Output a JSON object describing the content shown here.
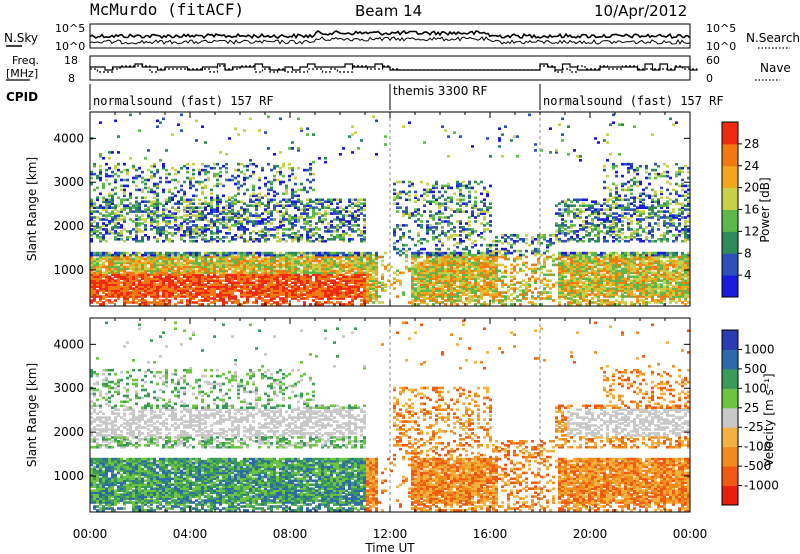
{
  "header": {
    "station": "McMurdo (fitACF)",
    "beam": "Beam 14",
    "date": "10/Apr/2012"
  },
  "top_panels": {
    "nsky_label": "N.Sky",
    "nsearch_label": "N.Search",
    "noise_ticks_left": [
      "10^5",
      "10^0"
    ],
    "noise_ticks_right": [
      "10^5",
      "10^0"
    ],
    "freq_label_line1": "Freq.",
    "freq_label_line2": "[MHz]",
    "freq_ticks": [
      "18",
      "8"
    ],
    "nave_label": "Nave",
    "nave_ticks": [
      "60",
      "0"
    ],
    "cpid_label": "CPID",
    "cpid_segments": [
      {
        "label": "normalsound (fast) 157 RF",
        "start_hour": 0
      },
      {
        "label": "themis 3300 RF",
        "start_hour": 12
      },
      {
        "label": "normalsound (fast) 157 RF",
        "start_hour": 18
      }
    ]
  },
  "chart_data": [
    {
      "type": "heatmap",
      "name": "power",
      "ylabel": "Slant Range [km]",
      "ylim": [
        180,
        4600
      ],
      "yticks": [
        1000,
        2000,
        3000,
        4000
      ],
      "xlim": [
        0,
        24
      ],
      "colorbar": {
        "label": "Power [dB]",
        "ticks": [
          "4",
          "8",
          "12",
          "16",
          "20",
          "24",
          "28"
        ],
        "colors": [
          "#1a1adc",
          "#2c4fb8",
          "#2e8a5a",
          "#5cb84a",
          "#c8d04a",
          "#f2a61c",
          "#f07a10",
          "#ee2a10"
        ]
      }
    },
    {
      "type": "heatmap",
      "name": "velocity",
      "ylabel": "Slant Range [km]",
      "ylim": [
        180,
        4600
      ],
      "yticks": [
        1000,
        2000,
        3000,
        4000
      ],
      "xlim": [
        0,
        24
      ],
      "xlabel": "Time UT",
      "xticks": [
        "00:00",
        "04:00",
        "08:00",
        "12:00",
        "16:00",
        "20:00",
        "00:00"
      ],
      "colorbar": {
        "label": "Velocity [m s⁻¹]",
        "ticks": [
          "1000",
          "500",
          "100",
          "25",
          "-25",
          "-100",
          "-500",
          "-1000"
        ],
        "colors": [
          "#2a3cb0",
          "#2e6aa8",
          "#3a9a5a",
          "#6cc440",
          "#c8c8c8",
          "#f2b240",
          "#f08c1c",
          "#ee5a14",
          "#e81e10"
        ]
      }
    }
  ]
}
